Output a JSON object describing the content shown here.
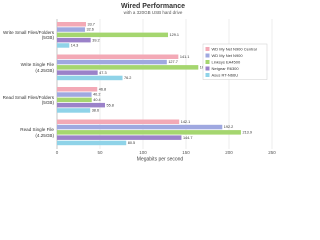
{
  "chart_data": {
    "type": "bar",
    "orientation": "horizontal",
    "title": "Wired Performance",
    "subtitle": "with a 320GB USB hard drive",
    "x_label": "Megabits per second",
    "categories": [
      "Write Small Files/Folders (5GB)",
      "Write Single File (4.25GB)",
      "Read Small Files/Folders (5GB)",
      "Read Single File (4.25GB)"
    ],
    "series": [
      {
        "name": "WD My Net N900 Central",
        "color": "#f3a9b6",
        "values": [
          33.7,
          141.1,
          46.8,
          142.1
        ]
      },
      {
        "name": "WD My Net N900",
        "color": "#9fa8e0",
        "values": [
          32.6,
          127.7,
          40.2,
          192.2
        ]
      },
      {
        "name": "Linksys EA4500",
        "color": "#a5d66f",
        "values": [
          129.1,
          164.3,
          40.4,
          213.9
        ]
      },
      {
        "name": "Netgear R6300",
        "color": "#9b82c9",
        "values": [
          39.2,
          47.3,
          55.8,
          144.7
        ]
      },
      {
        "name": "Asus RT-N66U",
        "color": "#8fd3e8",
        "values": [
          14.3,
          76.2,
          38.6,
          80.5
        ]
      }
    ],
    "xlim": [
      0,
      250
    ],
    "xticks": [
      0,
      50,
      100,
      150,
      200,
      250
    ],
    "grid": true,
    "legend": "right"
  }
}
